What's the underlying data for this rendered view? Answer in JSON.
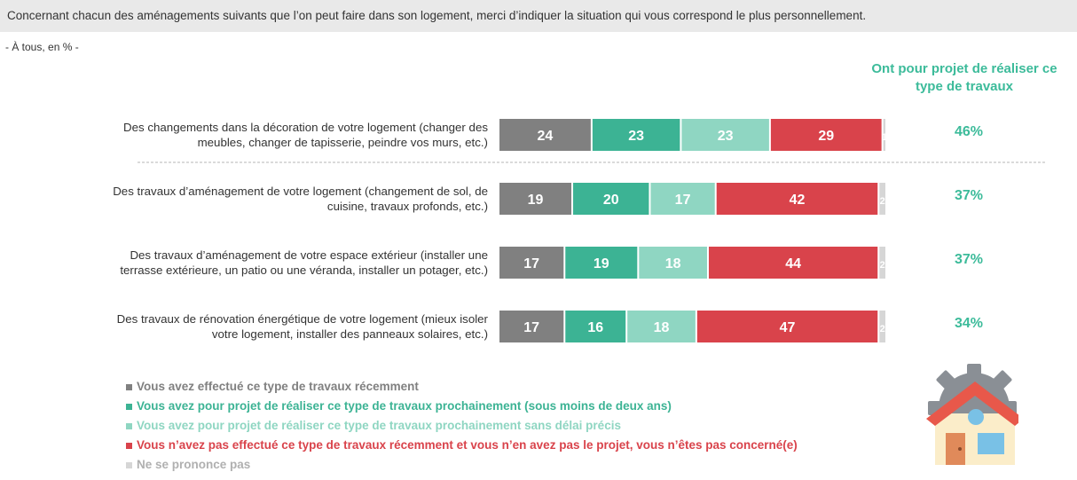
{
  "question": {
    "text": "Concernant chacun des aménagements suivants que l’on peut faire dans son logement, merci d’indiquer la situation qui vous correspond le plus personnellement."
  },
  "base_note": "- À tous, en % -",
  "side_header": {
    "line1": "Ont pour projet de réaliser ce",
    "line2": "type de travaux"
  },
  "chart_data": {
    "type": "bar",
    "orientation": "horizontal",
    "stacked": true,
    "categories": [
      "Des changements dans la décoration de votre logement (changer des meubles, changer de tapisserie, peindre vos murs, etc.)",
      "Des travaux d’aménagement de votre logement (changement de sol, de cuisine, travaux profonds, etc.)",
      "Des travaux d’aménagement de votre espace extérieur (installer une terrasse extérieure, un patio ou une véranda, installer un potager, etc.)",
      "Des travaux de rénovation énergétique de votre logement (mieux isoler votre logement, installer des panneaux solaires, etc.)"
    ],
    "category_lines": [
      [
        "Des changements dans la décoration de votre logement (changer des",
        "meubles, changer de tapisserie, peindre vos murs, etc.)"
      ],
      [
        "Des travaux d’aménagement de votre logement (changement de sol, de",
        "cuisine, travaux profonds, etc.)"
      ],
      [
        "Des travaux d’aménagement de votre espace extérieur (installer une",
        "terrasse extérieure, un patio ou une véranda, installer un potager, etc.)"
      ],
      [
        "Des travaux de rénovation énergétique de votre logement (mieux isoler",
        "votre logement, installer des panneaux solaires, etc.)"
      ]
    ],
    "series": [
      {
        "name": "Vous avez effectué ce type de travaux récemment",
        "color": "#808080",
        "values": [
          24,
          19,
          17,
          17
        ]
      },
      {
        "name": "Vous avez pour projet de réaliser ce type de travaux prochainement (sous moins de deux ans)",
        "color": "#3cb394",
        "values": [
          23,
          20,
          19,
          16
        ]
      },
      {
        "name": "Vous avez pour projet de réaliser ce type de travaux prochainement sans délai précis",
        "color": "#8fd6c2",
        "values": [
          23,
          17,
          18,
          18
        ]
      },
      {
        "name": "Vous n’avez pas effectué ce type de travaux récemment et vous n’en avez pas le projet, vous n’êtes pas concerné(e)",
        "color": "#d9434b",
        "values": [
          29,
          42,
          44,
          47
        ]
      },
      {
        "name": "Ne se prononce pas",
        "color": "#d6d6d6",
        "values": [
          1,
          2,
          2,
          2
        ]
      }
    ],
    "project_share": [
      "46%",
      "37%",
      "37%",
      "34%"
    ],
    "xlim": [
      0,
      100
    ],
    "legend_position": "bottom-left",
    "grid": false
  },
  "icon": "house-gear-icon"
}
